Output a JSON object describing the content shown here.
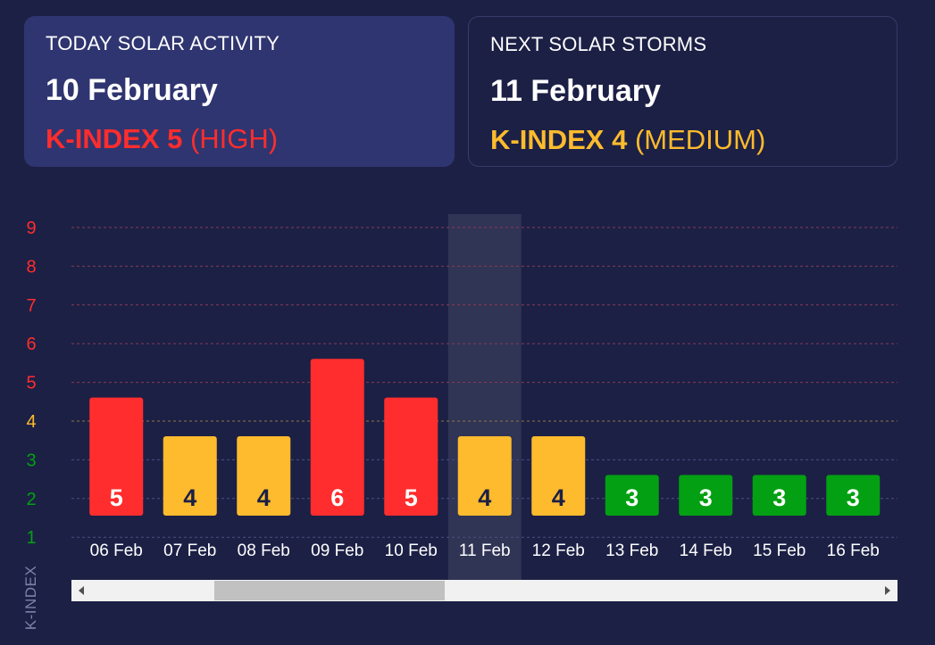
{
  "today": {
    "label": "TODAY SOLAR ACTIVITY",
    "date": "10 February",
    "kindex_text": "K-INDEX 5",
    "level_text": "(HIGH)",
    "color": "#ff2d2d"
  },
  "next": {
    "label": "NEXT SOLAR STORMS",
    "date": "11 February",
    "kindex_text": "K-INDEX 4",
    "level_text": "(MEDIUM)",
    "color": "#fdbb2d"
  },
  "colors": {
    "high": "#ff2d2d",
    "medium": "#fdbb2d",
    "low": "#02a012"
  },
  "chart_data": {
    "type": "bar",
    "ylabel": "K-INDEX",
    "ylim": [
      1,
      9
    ],
    "yticks": [
      1,
      2,
      3,
      4,
      5,
      6,
      7,
      8,
      9
    ],
    "categories": [
      "06 Feb",
      "07 Feb",
      "08 Feb",
      "09 Feb",
      "10 Feb",
      "11 Feb",
      "12 Feb",
      "13 Feb",
      "14 Feb",
      "15 Feb",
      "16 Feb"
    ],
    "values": [
      5,
      4,
      4,
      6,
      5,
      4,
      4,
      3,
      3,
      3,
      3
    ],
    "levels": [
      "high",
      "medium",
      "medium",
      "high",
      "high",
      "medium",
      "medium",
      "low",
      "low",
      "low",
      "low"
    ],
    "highlighted": "11 Feb",
    "grid": true
  },
  "scrollbar": {
    "left_arrow": "scroll-left-icon",
    "right_arrow": "scroll-right-icon"
  }
}
